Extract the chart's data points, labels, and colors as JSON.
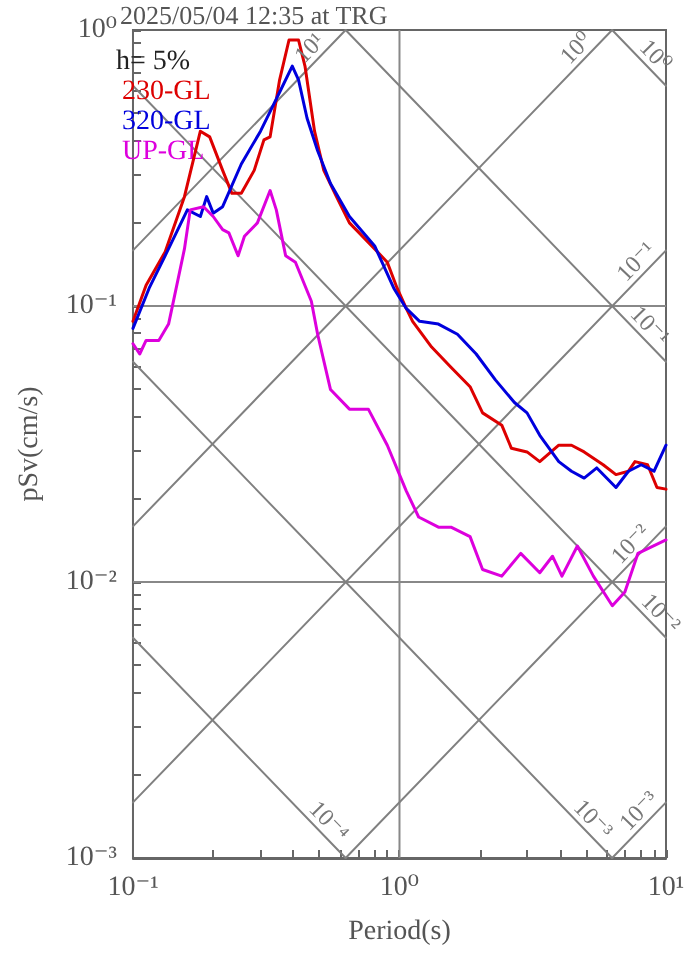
{
  "chart_data": {
    "type": "line",
    "title": "2025/05/04 12:35 at TRG",
    "xlabel": "Period(s)",
    "ylabel": "pSv(cm/s)",
    "log": "xy",
    "xlim": [
      0.1,
      10
    ],
    "ylim": [
      0.001,
      1
    ],
    "xticks": [
      {
        "value": 0.1,
        "label": "10⁻¹"
      },
      {
        "value": 0.2,
        "label": null
      },
      {
        "value": 0.3,
        "label": null
      },
      {
        "value": 0.4,
        "label": null
      },
      {
        "value": 0.5,
        "label": null
      },
      {
        "value": 0.6,
        "label": null
      },
      {
        "value": 0.7,
        "label": null
      },
      {
        "value": 0.8,
        "label": null
      },
      {
        "value": 0.9,
        "label": null
      },
      {
        "value": 1,
        "label": "10⁰"
      },
      {
        "value": 2,
        "label": null
      },
      {
        "value": 3,
        "label": null
      },
      {
        "value": 4,
        "label": null
      },
      {
        "value": 5,
        "label": null
      },
      {
        "value": 6,
        "label": null
      },
      {
        "value": 7,
        "label": null
      },
      {
        "value": 8,
        "label": null
      },
      {
        "value": 9,
        "label": null
      },
      {
        "value": 10,
        "label": "10¹"
      }
    ],
    "yticks": [
      {
        "value": 0.001,
        "label": "10⁻³"
      },
      {
        "value": 0.002,
        "label": null
      },
      {
        "value": 0.003,
        "label": null
      },
      {
        "value": 0.004,
        "label": null
      },
      {
        "value": 0.005,
        "label": null
      },
      {
        "value": 0.006,
        "label": null
      },
      {
        "value": 0.007,
        "label": null
      },
      {
        "value": 0.008,
        "label": null
      },
      {
        "value": 0.009,
        "label": null
      },
      {
        "value": 0.01,
        "label": "10⁻²"
      },
      {
        "value": 0.02,
        "label": null
      },
      {
        "value": 0.03,
        "label": null
      },
      {
        "value": 0.04,
        "label": null
      },
      {
        "value": 0.05,
        "label": null
      },
      {
        "value": 0.06,
        "label": null
      },
      {
        "value": 0.07,
        "label": null
      },
      {
        "value": 0.08,
        "label": null
      },
      {
        "value": 0.09,
        "label": null
      },
      {
        "value": 0.1,
        "label": "10⁻¹"
      },
      {
        "value": 0.2,
        "label": null
      },
      {
        "value": 0.3,
        "label": null
      },
      {
        "value": 0.4,
        "label": null
      },
      {
        "value": 0.5,
        "label": null
      },
      {
        "value": 0.6,
        "label": null
      },
      {
        "value": 0.7,
        "label": null
      },
      {
        "value": 0.8,
        "label": null
      },
      {
        "value": 0.9,
        "label": null
      },
      {
        "value": 1,
        "label": "10⁰"
      }
    ],
    "grid": false,
    "legend": "top left",
    "line_style": "solid",
    "marker": "none",
    "ref_lines": [
      {
        "axis": "x",
        "value": 1,
        "color": "#888888"
      },
      {
        "axis": "y",
        "value": 0.1,
        "color": "#888888"
      },
      {
        "axis": "y",
        "value": 0.01,
        "color": "#888888"
      }
    ],
    "series": [
      {
        "name": "230-GL",
        "color": "#dd0000",
        "x": [
          0.1,
          0.112,
          0.132,
          0.156,
          0.179,
          0.194,
          0.217,
          0.235,
          0.255,
          0.285,
          0.31,
          0.327,
          0.355,
          0.385,
          0.418,
          0.442,
          0.48,
          0.52,
          0.58,
          0.649,
          0.807,
          0.9,
          0.98,
          1.06,
          1.12,
          1.32,
          1.56,
          1.84,
          2.05,
          2.42,
          2.63,
          3.01,
          3.36,
          3.96,
          4.42,
          4.93,
          5.81,
          6.49,
          7.23,
          7.65,
          8.53,
          9.25,
          10
        ],
        "values": [
          0.088,
          0.119,
          0.157,
          0.249,
          0.43,
          0.41,
          0.31,
          0.256,
          0.256,
          0.31,
          0.4,
          0.41,
          0.66,
          0.92,
          0.92,
          0.74,
          0.43,
          0.31,
          0.249,
          0.2,
          0.161,
          0.144,
          0.116,
          0.098,
          0.088,
          0.071,
          0.06,
          0.051,
          0.041,
          0.037,
          0.0305,
          0.0296,
          0.0273,
          0.0313,
          0.0313,
          0.0296,
          0.0266,
          0.0245,
          0.0252,
          0.0273,
          0.0266,
          0.022,
          0.0217
        ]
      },
      {
        "name": "320-GL",
        "color": "#0000dd",
        "x": [
          0.1,
          0.115,
          0.132,
          0.16,
          0.179,
          0.189,
          0.2,
          0.217,
          0.255,
          0.301,
          0.327,
          0.355,
          0.396,
          0.418,
          0.45,
          0.493,
          0.551,
          0.649,
          0.807,
          0.952,
          1.06,
          1.19,
          1.4,
          1.65,
          1.94,
          2.29,
          2.7,
          3.01,
          3.36,
          3.96,
          4.42,
          4.93,
          5.5,
          6.49,
          7.23,
          8.07,
          9.02,
          10
        ],
        "values": [
          0.083,
          0.116,
          0.152,
          0.223,
          0.211,
          0.249,
          0.217,
          0.229,
          0.327,
          0.43,
          0.506,
          0.595,
          0.74,
          0.66,
          0.479,
          0.365,
          0.278,
          0.211,
          0.165,
          0.116,
          0.098,
          0.088,
          0.086,
          0.079,
          0.067,
          0.054,
          0.0447,
          0.041,
          0.034,
          0.0273,
          0.0252,
          0.0238,
          0.0259,
          0.022,
          0.0252,
          0.0266,
          0.0252,
          0.0313
        ]
      },
      {
        "name": "UP-GL",
        "color": "#dd00dd",
        "x": [
          0.1,
          0.106,
          0.112,
          0.125,
          0.136,
          0.14,
          0.156,
          0.164,
          0.184,
          0.2,
          0.217,
          0.229,
          0.248,
          0.262,
          0.293,
          0.327,
          0.345,
          0.374,
          0.407,
          0.467,
          0.493,
          0.551,
          0.649,
          0.764,
          0.9,
          1.06,
          1.18,
          1.4,
          1.56,
          1.84,
          2.05,
          2.42,
          2.85,
          3.36,
          3.75,
          4.07,
          4.65,
          5.34,
          6.29,
          7.01,
          7.85,
          10
        ],
        "values": [
          0.073,
          0.067,
          0.075,
          0.075,
          0.086,
          0.098,
          0.161,
          0.223,
          0.229,
          0.211,
          0.189,
          0.184,
          0.152,
          0.179,
          0.2,
          0.262,
          0.223,
          0.152,
          0.144,
          0.104,
          0.079,
          0.0498,
          0.0423,
          0.0423,
          0.0313,
          0.0214,
          0.0172,
          0.0158,
          0.0158,
          0.0146,
          0.0111,
          0.0105,
          0.0127,
          0.0108,
          0.0124,
          0.0105,
          0.0135,
          0.0105,
          0.0082,
          0.0092,
          0.0127,
          0.0142
        ]
      },
      {
        "color": "#808080",
        "x": [
          0.1,
          0.628
        ],
        "values": [
          0.159,
          1
        ]
      },
      {
        "color": "#808080",
        "x": [
          0.1,
          6.28
        ],
        "values": [
          0.0159,
          1
        ]
      },
      {
        "color": "#808080",
        "x": [
          0.1,
          10
        ],
        "values": [
          0.00159,
          0.159
        ]
      },
      {
        "color": "#808080",
        "x": [
          0.628,
          10
        ],
        "values": [
          0.001,
          0.0159
        ]
      },
      {
        "color": "#808080",
        "x": [
          6.28,
          10
        ],
        "values": [
          0.001,
          0.00159
        ]
      },
      {
        "color": "#808080",
        "x": [
          0.1,
          0.628
        ],
        "values": [
          0.00628,
          0.001
        ]
      },
      {
        "color": "#808080",
        "x": [
          0.1,
          6.28
        ],
        "values": [
          0.0628,
          0.001
        ]
      },
      {
        "color": "#808080",
        "x": [
          0.1,
          10
        ],
        "values": [
          0.628,
          0.00628
        ]
      },
      {
        "color": "#808080",
        "x": [
          0.628,
          10
        ],
        "values": [
          1,
          0.0628
        ]
      },
      {
        "color": "#808080",
        "x": [
          6.28,
          10
        ],
        "values": [
          1,
          0.628
        ]
      }
    ],
    "annotations": [
      "h= 5%",
      {
        "text": "10¹",
        "x": 0.5,
        "y": 0.796
      },
      {
        "text": "10⁰",
        "x": 5,
        "y": 0.796
      },
      {
        "text": "10⁰",
        "x": 8.4,
        "y": 0.748
      },
      {
        "text": "10⁻¹",
        "x": 8.4,
        "y": 0.134
      },
      {
        "text": "10⁻¹",
        "x": 8,
        "y": 0.0785
      },
      {
        "text": "10⁻²",
        "x": 8,
        "y": 0.0127
      },
      {
        "text": "10⁻²",
        "x": 8.8,
        "y": 0.00714
      },
      {
        "text": "10⁻³",
        "x": 4.9,
        "y": 0.00128
      },
      {
        "text": "10⁻³",
        "x": 8.6,
        "y": 0.00137
      },
      {
        "text": "10⁻⁴",
        "x": 0.5,
        "y": 0.00126
      }
    ]
  }
}
